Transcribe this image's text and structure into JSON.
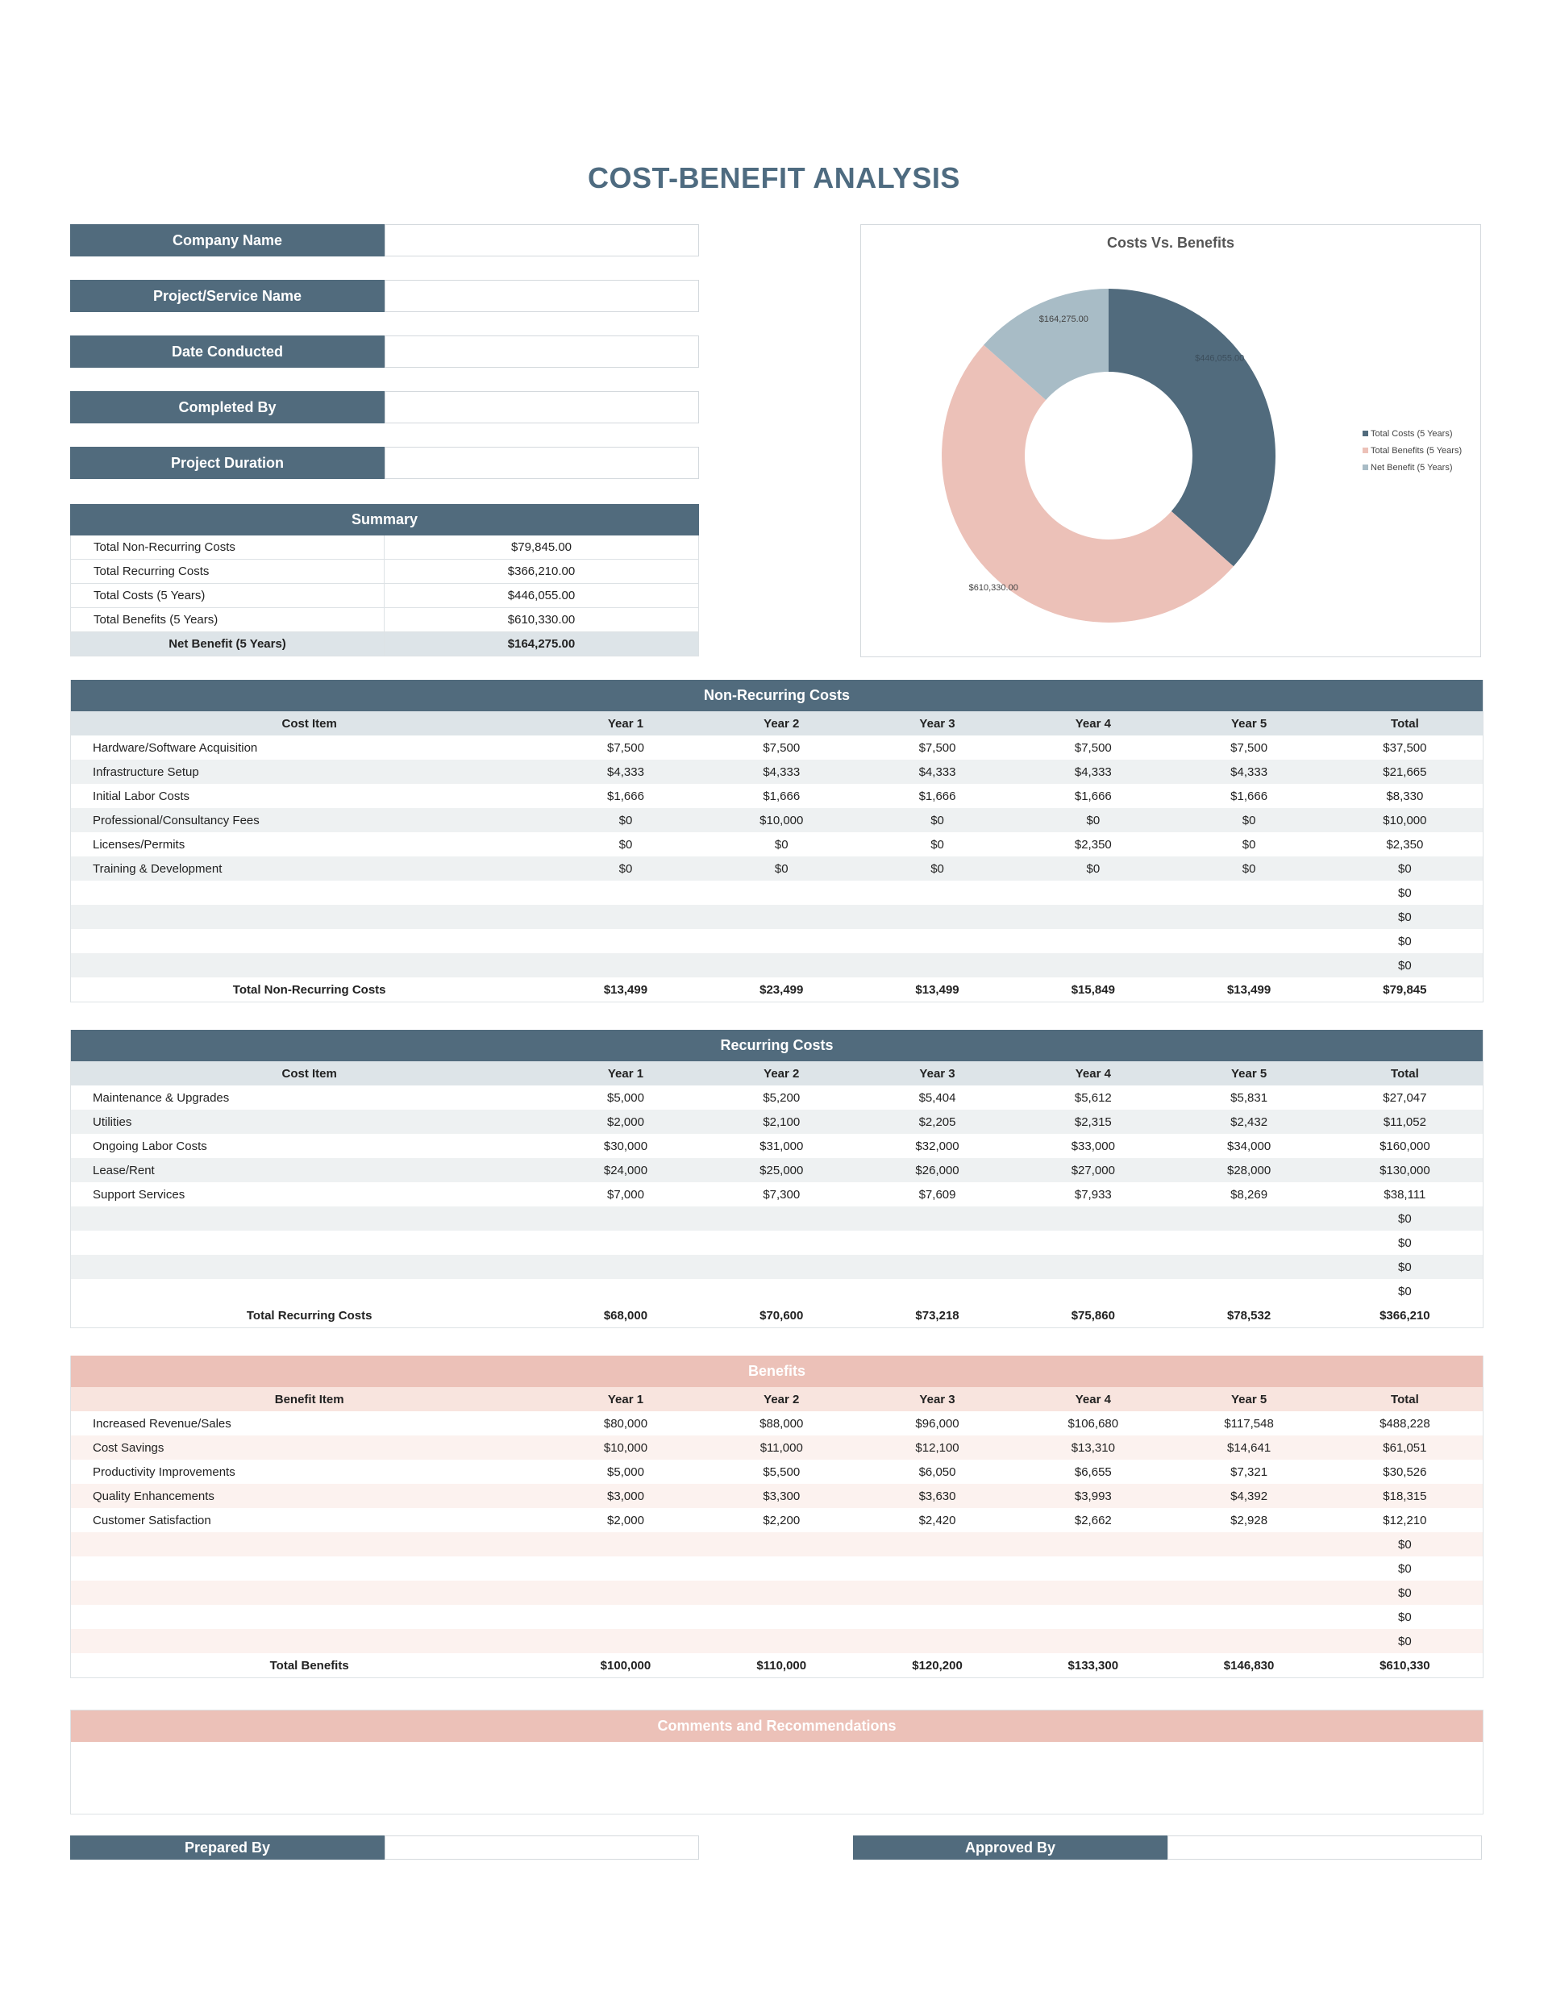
{
  "title": "COST-BENEFIT ANALYSIS",
  "info_fields": [
    {
      "label": "Company Name",
      "value": ""
    },
    {
      "label": "Project/Service Name",
      "value": ""
    },
    {
      "label": "Date Conducted",
      "value": ""
    },
    {
      "label": "Completed By",
      "value": ""
    },
    {
      "label": "Project Duration",
      "value": ""
    }
  ],
  "summary": {
    "title": "Summary",
    "rows": [
      {
        "label": "Total Non-Recurring Costs",
        "value": "$79,845.00"
      },
      {
        "label": "Total Recurring Costs",
        "value": "$366,210.00"
      },
      {
        "label": "Total Costs (5 Years)",
        "value": "$446,055.00"
      },
      {
        "label": "Total Benefits (5 Years)",
        "value": "$610,330.00"
      }
    ],
    "net_label": "Net Benefit (5 Years)",
    "net_value": "$164,275.00"
  },
  "chart_data": {
    "type": "pie",
    "title": "Costs Vs. Benefits",
    "labels": [
      "Total Costs (5 Years)",
      "Total Benefits (5 Years)",
      "Net Benefit (5 Years)"
    ],
    "values": [
      446055,
      610330,
      164275
    ],
    "value_labels": [
      "$446,055.00",
      "$610,330.00",
      "$164,275.00"
    ],
    "colors": [
      "#516b7d",
      "#ecc1b8",
      "#a8bcc6"
    ],
    "legend": "right",
    "donut": true
  },
  "non_recurring": {
    "title": "Non-Recurring Costs",
    "headers": [
      "Cost Item",
      "Year 1",
      "Year 2",
      "Year 3",
      "Year 4",
      "Year 5",
      "Total"
    ],
    "rows": [
      [
        "Hardware/Software Acquisition",
        "$7,500",
        "$7,500",
        "$7,500",
        "$7,500",
        "$7,500",
        "$37,500"
      ],
      [
        "Infrastructure Setup",
        "$4,333",
        "$4,333",
        "$4,333",
        "$4,333",
        "$4,333",
        "$21,665"
      ],
      [
        "Initial Labor Costs",
        "$1,666",
        "$1,666",
        "$1,666",
        "$1,666",
        "$1,666",
        "$8,330"
      ],
      [
        "Professional/Consultancy Fees",
        "$0",
        "$10,000",
        "$0",
        "$0",
        "$0",
        "$10,000"
      ],
      [
        "Licenses/Permits",
        "$0",
        "$0",
        "$0",
        "$2,350",
        "$0",
        "$2,350"
      ],
      [
        "Training & Development",
        "$0",
        "$0",
        "$0",
        "$0",
        "$0",
        "$0"
      ],
      [
        "",
        "",
        "",
        "",
        "",
        "",
        "$0"
      ],
      [
        "",
        "",
        "",
        "",
        "",
        "",
        "$0"
      ],
      [
        "",
        "",
        "",
        "",
        "",
        "",
        "$0"
      ],
      [
        "",
        "",
        "",
        "",
        "",
        "",
        "$0"
      ]
    ],
    "total": [
      "Total Non-Recurring Costs",
      "$13,499",
      "$23,499",
      "$13,499",
      "$15,849",
      "$13,499",
      "$79,845"
    ]
  },
  "recurring": {
    "title": "Recurring Costs",
    "headers": [
      "Cost Item",
      "Year 1",
      "Year 2",
      "Year 3",
      "Year 4",
      "Year 5",
      "Total"
    ],
    "rows": [
      [
        "Maintenance & Upgrades",
        "$5,000",
        "$5,200",
        "$5,404",
        "$5,612",
        "$5,831",
        "$27,047"
      ],
      [
        "Utilities",
        "$2,000",
        "$2,100",
        "$2,205",
        "$2,315",
        "$2,432",
        "$11,052"
      ],
      [
        "Ongoing Labor Costs",
        "$30,000",
        "$31,000",
        "$32,000",
        "$33,000",
        "$34,000",
        "$160,000"
      ],
      [
        "Lease/Rent",
        "$24,000",
        "$25,000",
        "$26,000",
        "$27,000",
        "$28,000",
        "$130,000"
      ],
      [
        "Support Services",
        "$7,000",
        "$7,300",
        "$7,609",
        "$7,933",
        "$8,269",
        "$38,111"
      ],
      [
        "",
        "",
        "",
        "",
        "",
        "",
        "$0"
      ],
      [
        "",
        "",
        "",
        "",
        "",
        "",
        "$0"
      ],
      [
        "",
        "",
        "",
        "",
        "",
        "",
        "$0"
      ],
      [
        "",
        "",
        "",
        "",
        "",
        "",
        "$0"
      ]
    ],
    "total": [
      "Total Recurring Costs",
      "$68,000",
      "$70,600",
      "$73,218",
      "$75,860",
      "$78,532",
      "$366,210"
    ]
  },
  "benefits": {
    "title": "Benefits",
    "headers": [
      "Benefit Item",
      "Year 1",
      "Year 2",
      "Year 3",
      "Year 4",
      "Year 5",
      "Total"
    ],
    "rows": [
      [
        "Increased Revenue/Sales",
        "$80,000",
        "$88,000",
        "$96,000",
        "$106,680",
        "$117,548",
        "$488,228"
      ],
      [
        "Cost Savings",
        "$10,000",
        "$11,000",
        "$12,100",
        "$13,310",
        "$14,641",
        "$61,051"
      ],
      [
        "Productivity Improvements",
        "$5,000",
        "$5,500",
        "$6,050",
        "$6,655",
        "$7,321",
        "$30,526"
      ],
      [
        "Quality Enhancements",
        "$3,000",
        "$3,300",
        "$3,630",
        "$3,993",
        "$4,392",
        "$18,315"
      ],
      [
        "Customer Satisfaction",
        "$2,000",
        "$2,200",
        "$2,420",
        "$2,662",
        "$2,928",
        "$12,210"
      ],
      [
        "",
        "",
        "",
        "",
        "",
        "",
        "$0"
      ],
      [
        "",
        "",
        "",
        "",
        "",
        "",
        "$0"
      ],
      [
        "",
        "",
        "",
        "",
        "",
        "",
        "$0"
      ],
      [
        "",
        "",
        "",
        "",
        "",
        "",
        "$0"
      ],
      [
        "",
        "",
        "",
        "",
        "",
        "",
        "$0"
      ]
    ],
    "total": [
      "Total Benefits",
      "$100,000",
      "$110,000",
      "$120,200",
      "$133,300",
      "$146,830",
      "$610,330"
    ]
  },
  "comments": {
    "title": "Comments and Recommendations",
    "value": ""
  },
  "signatures": [
    {
      "label": "Prepared By",
      "value": ""
    },
    {
      "label": "Approved By",
      "value": ""
    }
  ]
}
